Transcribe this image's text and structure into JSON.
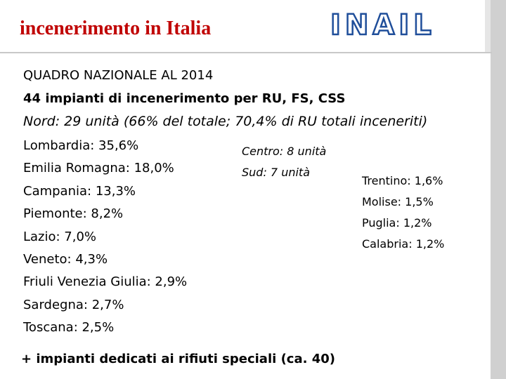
{
  "header": {
    "title": "incenerimento in Italia",
    "logo": "INAIL"
  },
  "intro": [
    "QUADRO NAZIONALE AL 2014",
    "44 impianti di incenerimento per RU, FS, CSS",
    "Nord: 29 unità (66% del totale; 70,4% di RU totali inceneriti)"
  ],
  "north_list": [
    "Lombardia: 35,6%",
    "Emilia Romagna: 18,0%",
    "Campania: 13,3%",
    "Piemonte: 8,2%",
    "Lazio: 7,0%",
    "Veneto: 4,3%",
    "Friuli Venezia Giulia: 2,9%",
    "Sardegna: 2,7%",
    "Toscana: 2,5%"
  ],
  "centre_south": [
    "Centro: 8 unità",
    "Sud: 7 unità"
  ],
  "south_list": [
    "Trentino: 1,6%",
    "Molise: 1,5%",
    "Puglia: 1,2%",
    "Calabria: 1,2%"
  ],
  "footer": "+ impianti dedicati ai rifiuti speciali (ca. 40)"
}
